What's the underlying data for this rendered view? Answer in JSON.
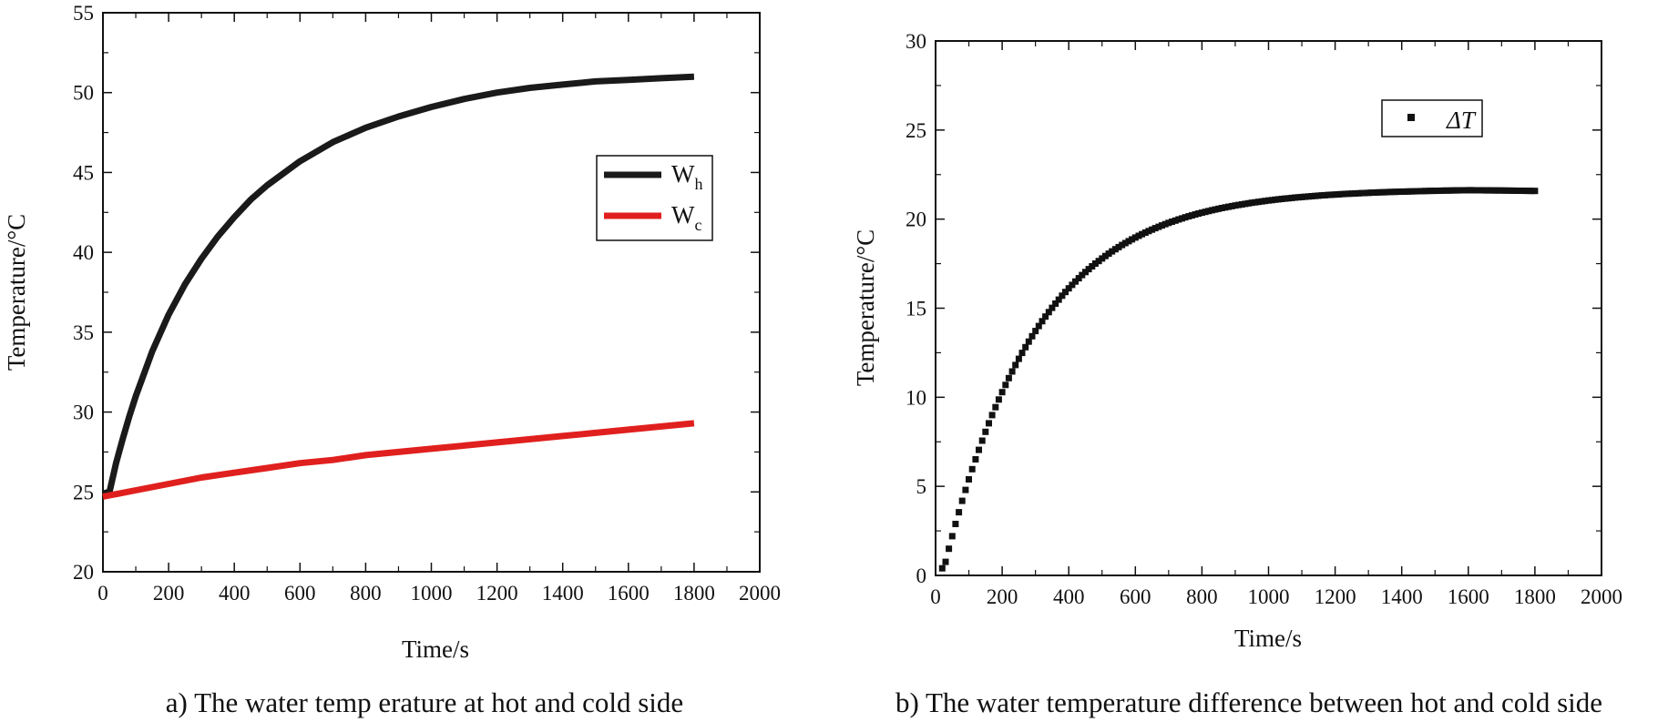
{
  "colors": {
    "hot": "#1a1a1a",
    "cold": "#e0201e",
    "axis": "#111111",
    "delta": "#111111"
  },
  "chart_data": [
    {
      "type": "line",
      "caption": "a) The water temp erature at hot and cold side",
      "xlabel": "Time/s",
      "ylabel": "Temperature/°C",
      "xlim": [
        0,
        2000
      ],
      "ylim": [
        20,
        55
      ],
      "xticks": [
        0,
        200,
        400,
        600,
        800,
        1000,
        1200,
        1400,
        1600,
        1800,
        2000
      ],
      "yticks": [
        20,
        25,
        30,
        35,
        40,
        45,
        50,
        55
      ],
      "legend_position": "right-middle",
      "series": [
        {
          "name": "W",
          "sub": "h",
          "color_key": "hot",
          "x": [
            0,
            20,
            40,
            60,
            80,
            100,
            150,
            200,
            250,
            300,
            350,
            400,
            450,
            500,
            600,
            700,
            800,
            900,
            1000,
            1100,
            1200,
            1300,
            1400,
            1500,
            1600,
            1700,
            1800
          ],
          "y": [
            24.9,
            25.0,
            26.8,
            28.3,
            29.7,
            31.0,
            33.8,
            36.1,
            38.0,
            39.6,
            41.0,
            42.2,
            43.3,
            44.2,
            45.7,
            46.9,
            47.8,
            48.5,
            49.1,
            49.6,
            50.0,
            50.3,
            50.5,
            50.7,
            50.8,
            50.9,
            51.0
          ]
        },
        {
          "name": "W",
          "sub": "c",
          "color_key": "cold",
          "x": [
            0,
            100,
            200,
            300,
            400,
            500,
            600,
            700,
            800,
            900,
            1000,
            1100,
            1200,
            1300,
            1400,
            1500,
            1600,
            1700,
            1800
          ],
          "y": [
            24.7,
            25.1,
            25.5,
            25.9,
            26.2,
            26.5,
            26.8,
            27.0,
            27.3,
            27.5,
            27.7,
            27.9,
            28.1,
            28.3,
            28.5,
            28.7,
            28.9,
            29.1,
            29.3
          ]
        }
      ]
    },
    {
      "type": "scatter",
      "caption": "b) The water temperature difference between hot and cold side",
      "xlabel": "Time/s",
      "ylabel": "Temperature/°C",
      "xlim": [
        0,
        2000
      ],
      "ylim": [
        0,
        30
      ],
      "xticks": [
        0,
        200,
        400,
        600,
        800,
        1000,
        1200,
        1400,
        1600,
        1800,
        2000
      ],
      "yticks": [
        0,
        5,
        10,
        15,
        20,
        25,
        30
      ],
      "legend_position": "top-right",
      "series": [
        {
          "name": "ΔT",
          "color_key": "delta",
          "x_start": 20,
          "x_end": 1800,
          "x_step": 10,
          "model": "21.7*(1-exp(-(t-20)/280))",
          "anchor_points": [
            [
              20,
              0.4
            ],
            [
              100,
              5.0
            ],
            [
              200,
              10.0
            ],
            [
              400,
              16.0
            ],
            [
              600,
              18.5
            ],
            [
              800,
              20.0
            ],
            [
              1000,
              20.8
            ],
            [
              1200,
              21.3
            ],
            [
              1400,
              21.6
            ],
            [
              1600,
              21.7
            ],
            [
              1800,
              21.6
            ]
          ]
        }
      ]
    }
  ]
}
